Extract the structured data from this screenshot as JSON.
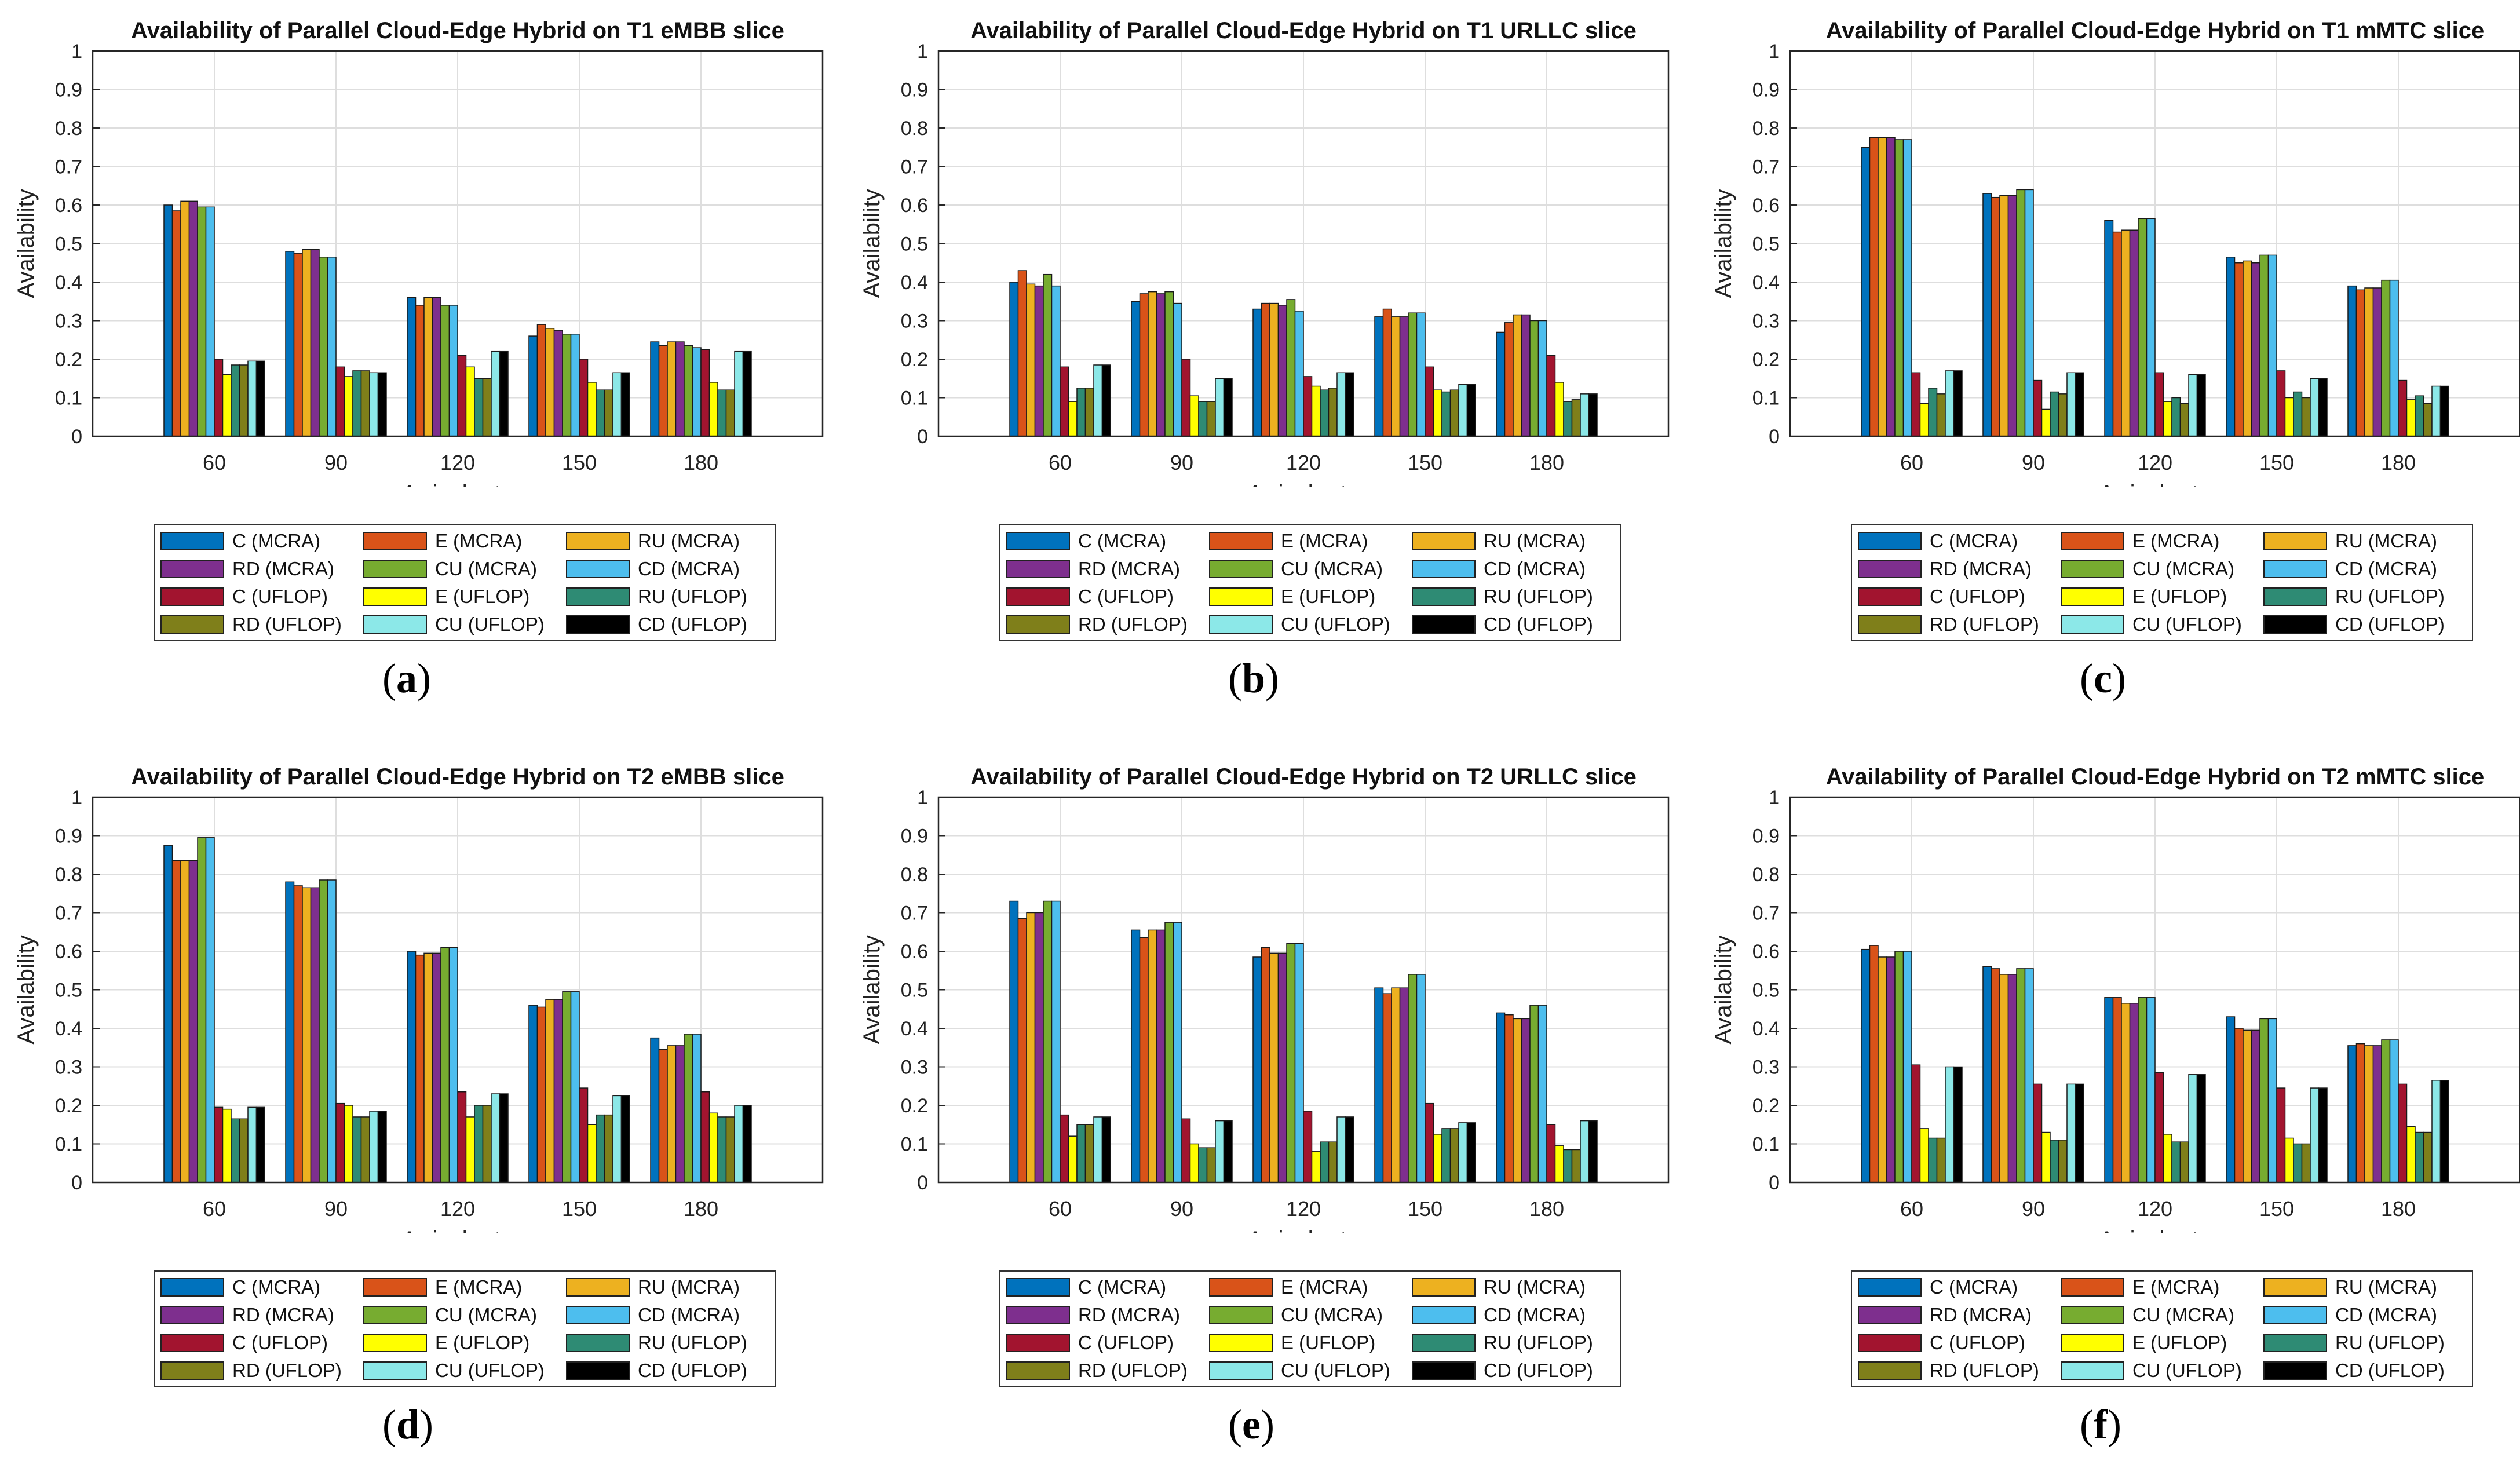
{
  "series_legend": [
    {
      "name": "C (MCRA)",
      "color": "#0072BD"
    },
    {
      "name": "E (MCRA)",
      "color": "#D95319"
    },
    {
      "name": "RU (MCRA)",
      "color": "#EDB120"
    },
    {
      "name": "RD (MCRA)",
      "color": "#7E2F8E"
    },
    {
      "name": "CU (MCRA)",
      "color": "#77AC30"
    },
    {
      "name": "CD (MCRA)",
      "color": "#4DBEEE"
    },
    {
      "name": "C (UFLOP)",
      "color": "#A2142F"
    },
    {
      "name": "E (UFLOP)",
      "color": "#FFFF00"
    },
    {
      "name": "RU (UFLOP)",
      "color": "#2E8B74"
    },
    {
      "name": "RD (UFLOP)",
      "color": "#7F7F1A"
    },
    {
      "name": "CU (UFLOP)",
      "color": "#8CE8E8"
    },
    {
      "name": "CD (UFLOP)",
      "color": "#000000"
    }
  ],
  "chart_data": [
    {
      "type": "bar",
      "panel_label": "a",
      "title": "Availability of Parallel Cloud-Edge Hybrid on T1 eMBB slice",
      "xlabel": "Arrival rate",
      "ylabel": "Availability",
      "ylim": [
        0,
        1
      ],
      "yticks": [
        "0",
        "0.1",
        "0.2",
        "0.3",
        "0.4",
        "0.5",
        "0.6",
        "0.7",
        "0.8",
        "0.9",
        "1"
      ],
      "grid": true,
      "legend_position": "below",
      "categories": [
        "60",
        "90",
        "120",
        "150",
        "180"
      ],
      "values": [
        [
          0.6,
          0.585,
          0.61,
          0.61,
          0.595,
          0.595,
          0.2,
          0.16,
          0.185,
          0.185,
          0.195,
          0.195
        ],
        [
          0.48,
          0.475,
          0.485,
          0.485,
          0.465,
          0.465,
          0.18,
          0.155,
          0.17,
          0.17,
          0.165,
          0.165
        ],
        [
          0.36,
          0.34,
          0.36,
          0.36,
          0.34,
          0.34,
          0.21,
          0.18,
          0.15,
          0.15,
          0.22,
          0.22
        ],
        [
          0.26,
          0.29,
          0.28,
          0.275,
          0.265,
          0.265,
          0.2,
          0.14,
          0.12,
          0.12,
          0.165,
          0.165
        ],
        [
          0.245,
          0.235,
          0.245,
          0.245,
          0.235,
          0.23,
          0.225,
          0.14,
          0.12,
          0.12,
          0.22,
          0.22
        ]
      ]
    },
    {
      "type": "bar",
      "panel_label": "b",
      "title": "Availability of Parallel Cloud-Edge Hybrid on T1 URLLC slice",
      "xlabel": "Arrival rate",
      "ylabel": "Availability",
      "ylim": [
        0,
        1
      ],
      "yticks": [
        "0",
        "0.1",
        "0.2",
        "0.3",
        "0.4",
        "0.5",
        "0.6",
        "0.7",
        "0.8",
        "0.9",
        "1"
      ],
      "grid": true,
      "legend_position": "below",
      "categories": [
        "60",
        "90",
        "120",
        "150",
        "180"
      ],
      "values": [
        [
          0.4,
          0.43,
          0.395,
          0.39,
          0.42,
          0.39,
          0.18,
          0.09,
          0.125,
          0.125,
          0.185,
          0.185
        ],
        [
          0.35,
          0.37,
          0.375,
          0.37,
          0.375,
          0.345,
          0.2,
          0.105,
          0.09,
          0.09,
          0.15,
          0.15
        ],
        [
          0.33,
          0.345,
          0.345,
          0.34,
          0.355,
          0.325,
          0.155,
          0.13,
          0.12,
          0.125,
          0.165,
          0.165
        ],
        [
          0.31,
          0.33,
          0.31,
          0.31,
          0.32,
          0.32,
          0.18,
          0.12,
          0.115,
          0.12,
          0.135,
          0.135
        ],
        [
          0.27,
          0.295,
          0.315,
          0.315,
          0.3,
          0.3,
          0.21,
          0.14,
          0.09,
          0.095,
          0.11,
          0.11
        ]
      ]
    },
    {
      "type": "bar",
      "panel_label": "c",
      "title": "Availability of Parallel Cloud-Edge Hybrid on T1 mMTC slice",
      "xlabel": "Arrival rate",
      "ylabel": "Availability",
      "ylim": [
        0,
        1
      ],
      "yticks": [
        "0",
        "0.1",
        "0.2",
        "0.3",
        "0.4",
        "0.5",
        "0.6",
        "0.7",
        "0.8",
        "0.9",
        "1"
      ],
      "grid": true,
      "legend_position": "below",
      "categories": [
        "60",
        "90",
        "120",
        "150",
        "180"
      ],
      "values": [
        [
          0.75,
          0.775,
          0.775,
          0.775,
          0.77,
          0.77,
          0.165,
          0.085,
          0.125,
          0.11,
          0.17,
          0.17
        ],
        [
          0.63,
          0.62,
          0.625,
          0.625,
          0.64,
          0.64,
          0.145,
          0.07,
          0.115,
          0.11,
          0.165,
          0.165
        ],
        [
          0.56,
          0.53,
          0.535,
          0.535,
          0.565,
          0.565,
          0.165,
          0.09,
          0.1,
          0.085,
          0.16,
          0.16
        ],
        [
          0.465,
          0.45,
          0.455,
          0.45,
          0.47,
          0.47,
          0.17,
          0.1,
          0.115,
          0.1,
          0.15,
          0.15
        ],
        [
          0.39,
          0.38,
          0.385,
          0.385,
          0.405,
          0.405,
          0.145,
          0.095,
          0.105,
          0.085,
          0.13,
          0.13
        ]
      ]
    },
    {
      "type": "bar",
      "panel_label": "d",
      "title": "Availability of Parallel Cloud-Edge Hybrid on T2 eMBB slice",
      "xlabel": "Arrival rate",
      "ylabel": "Availability",
      "ylim": [
        0,
        1
      ],
      "yticks": [
        "0",
        "0.1",
        "0.2",
        "0.3",
        "0.4",
        "0.5",
        "0.6",
        "0.7",
        "0.8",
        "0.9",
        "1"
      ],
      "grid": true,
      "legend_position": "below",
      "categories": [
        "60",
        "90",
        "120",
        "150",
        "180"
      ],
      "values": [
        [
          0.875,
          0.835,
          0.835,
          0.835,
          0.895,
          0.895,
          0.195,
          0.19,
          0.165,
          0.165,
          0.195,
          0.195
        ],
        [
          0.78,
          0.77,
          0.765,
          0.765,
          0.785,
          0.785,
          0.205,
          0.2,
          0.17,
          0.17,
          0.185,
          0.185
        ],
        [
          0.6,
          0.59,
          0.595,
          0.595,
          0.61,
          0.61,
          0.235,
          0.17,
          0.2,
          0.2,
          0.23,
          0.23
        ],
        [
          0.46,
          0.455,
          0.475,
          0.475,
          0.495,
          0.495,
          0.245,
          0.15,
          0.175,
          0.175,
          0.225,
          0.225
        ],
        [
          0.375,
          0.345,
          0.355,
          0.355,
          0.385,
          0.385,
          0.235,
          0.18,
          0.17,
          0.17,
          0.2,
          0.2
        ]
      ]
    },
    {
      "type": "bar",
      "panel_label": "e",
      "title": "Availability of Parallel Cloud-Edge Hybrid on T2 URLLC slice",
      "xlabel": "Arrival rate",
      "ylabel": "Availability",
      "ylim": [
        0,
        1
      ],
      "yticks": [
        "0",
        "0.1",
        "0.2",
        "0.3",
        "0.4",
        "0.5",
        "0.6",
        "0.7",
        "0.8",
        "0.9",
        "1"
      ],
      "grid": true,
      "legend_position": "below",
      "categories": [
        "60",
        "90",
        "120",
        "150",
        "180"
      ],
      "values": [
        [
          0.73,
          0.685,
          0.7,
          0.7,
          0.73,
          0.73,
          0.175,
          0.12,
          0.15,
          0.15,
          0.17,
          0.17
        ],
        [
          0.655,
          0.635,
          0.655,
          0.655,
          0.675,
          0.675,
          0.165,
          0.1,
          0.09,
          0.09,
          0.16,
          0.16
        ],
        [
          0.585,
          0.61,
          0.595,
          0.595,
          0.62,
          0.62,
          0.185,
          0.08,
          0.105,
          0.105,
          0.17,
          0.17
        ],
        [
          0.505,
          0.49,
          0.505,
          0.505,
          0.54,
          0.54,
          0.205,
          0.125,
          0.14,
          0.14,
          0.155,
          0.155
        ],
        [
          0.44,
          0.435,
          0.425,
          0.425,
          0.46,
          0.46,
          0.15,
          0.095,
          0.085,
          0.085,
          0.16,
          0.16
        ]
      ]
    },
    {
      "type": "bar",
      "panel_label": "f",
      "title": "Availability of Parallel Cloud-Edge Hybrid on T2 mMTC slice",
      "xlabel": "Arrival rate",
      "ylabel": "Availability",
      "ylim": [
        0,
        1
      ],
      "yticks": [
        "0",
        "0.1",
        "0.2",
        "0.3",
        "0.4",
        "0.5",
        "0.6",
        "0.7",
        "0.8",
        "0.9",
        "1"
      ],
      "grid": true,
      "legend_position": "below",
      "categories": [
        "60",
        "90",
        "120",
        "150",
        "180"
      ],
      "values": [
        [
          0.605,
          0.615,
          0.585,
          0.585,
          0.6,
          0.6,
          0.305,
          0.14,
          0.115,
          0.115,
          0.3,
          0.3
        ],
        [
          0.56,
          0.555,
          0.54,
          0.54,
          0.555,
          0.555,
          0.255,
          0.13,
          0.11,
          0.11,
          0.255,
          0.255
        ],
        [
          0.48,
          0.48,
          0.465,
          0.465,
          0.48,
          0.48,
          0.285,
          0.125,
          0.105,
          0.105,
          0.28,
          0.28
        ],
        [
          0.43,
          0.4,
          0.395,
          0.395,
          0.425,
          0.425,
          0.245,
          0.115,
          0.1,
          0.1,
          0.245,
          0.245
        ],
        [
          0.355,
          0.36,
          0.355,
          0.355,
          0.37,
          0.37,
          0.255,
          0.145,
          0.13,
          0.13,
          0.265,
          0.265
        ]
      ]
    }
  ]
}
